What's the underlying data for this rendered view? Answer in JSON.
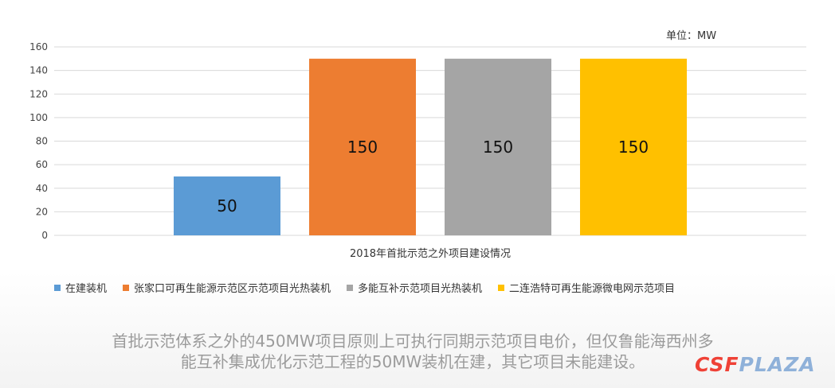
{
  "unit_label": "单位：MW",
  "chart_data": {
    "type": "bar",
    "title": "",
    "xlabel": "2018年首批示范之外项目建设情况",
    "ylabel": "",
    "ylim": [
      0,
      160
    ],
    "y_ticks": [
      0,
      20,
      40,
      60,
      80,
      100,
      120,
      140,
      160
    ],
    "grid": true,
    "legend_position": "bottom",
    "series": [
      {
        "name": "在建装机",
        "value": 50,
        "color": "#5b9bd5"
      },
      {
        "name": "张家口可再生能源示范区示范项目光热装机",
        "value": 150,
        "color": "#ed7d31"
      },
      {
        "name": "多能互补示范项目光热装机",
        "value": 150,
        "color": "#a5a5a5"
      },
      {
        "name": "二连浩特可再生能源微电网示范项目",
        "value": 150,
        "color": "#ffc000"
      }
    ]
  },
  "caption": {
    "line1": "首批示范体系之外的450MW项目原则上可执行同期示范项目电价，但仅鲁能海西州多",
    "line2": "能互补集成优化示范工程的50MW装机在建，其它项目未能建设。"
  },
  "brand": {
    "part1": "CSF",
    "part2": "PLAZA"
  }
}
